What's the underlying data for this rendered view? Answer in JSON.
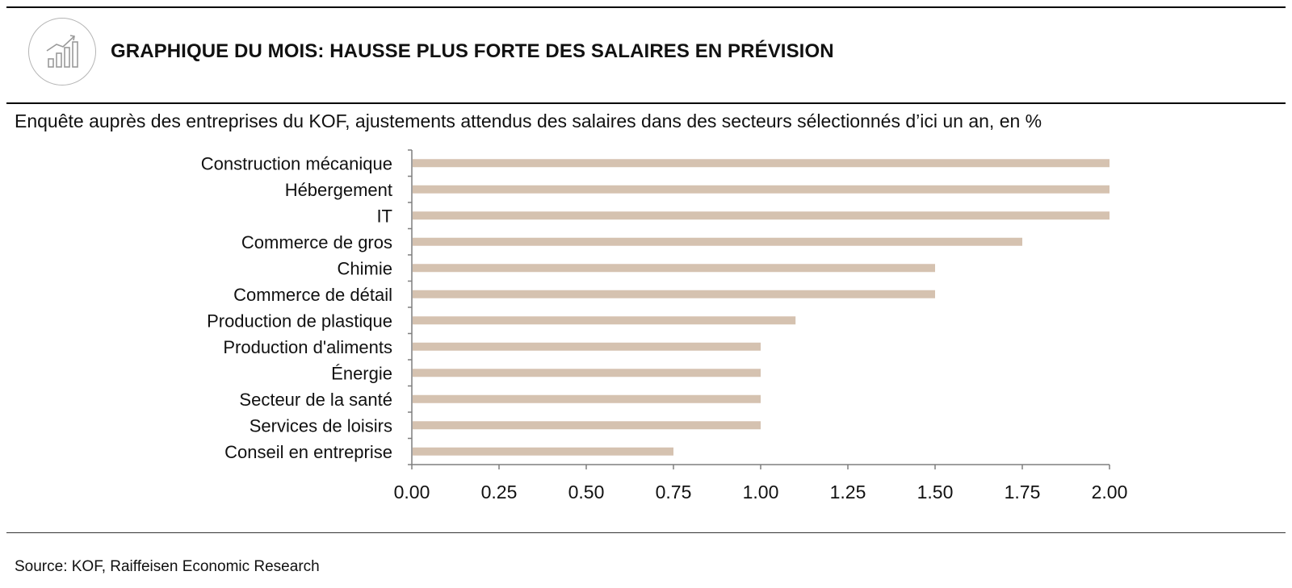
{
  "header": {
    "title": "GRAPHIQUE DU MOIS: HAUSSE PLUS FORTE DES SALAIRES EN PRÉVISION",
    "icon": "growth-chart-icon"
  },
  "subtitle": "Enquête auprès des entreprises du KOF, ajustements attendus des salaires dans des secteurs sélectionnés d’ici un an, en %",
  "source": "Source: KOF, Raiffeisen Economic Research",
  "colors": {
    "bar": "#d5c2b0",
    "axis": "#7f7f7f"
  },
  "chart_data": {
    "type": "bar",
    "orientation": "horizontal",
    "categories": [
      "Construction mécanique",
      "Hébergement",
      "IT",
      "Commerce de gros",
      "Chimie",
      "Commerce de détail",
      "Production de plastique",
      "Production d'aliments",
      "Énergie",
      "Secteur de la santé",
      "Services de loisirs",
      "Conseil en entreprise"
    ],
    "values": [
      2.0,
      2.0,
      2.0,
      1.75,
      1.5,
      1.5,
      1.1,
      1.0,
      1.0,
      1.0,
      1.0,
      0.75
    ],
    "xlim": [
      0,
      2
    ],
    "xticks": [
      "0.00",
      "0.25",
      "0.50",
      "0.75",
      "1.00",
      "1.25",
      "1.50",
      "1.75",
      "2.00"
    ],
    "grid": false,
    "legend": "none"
  }
}
